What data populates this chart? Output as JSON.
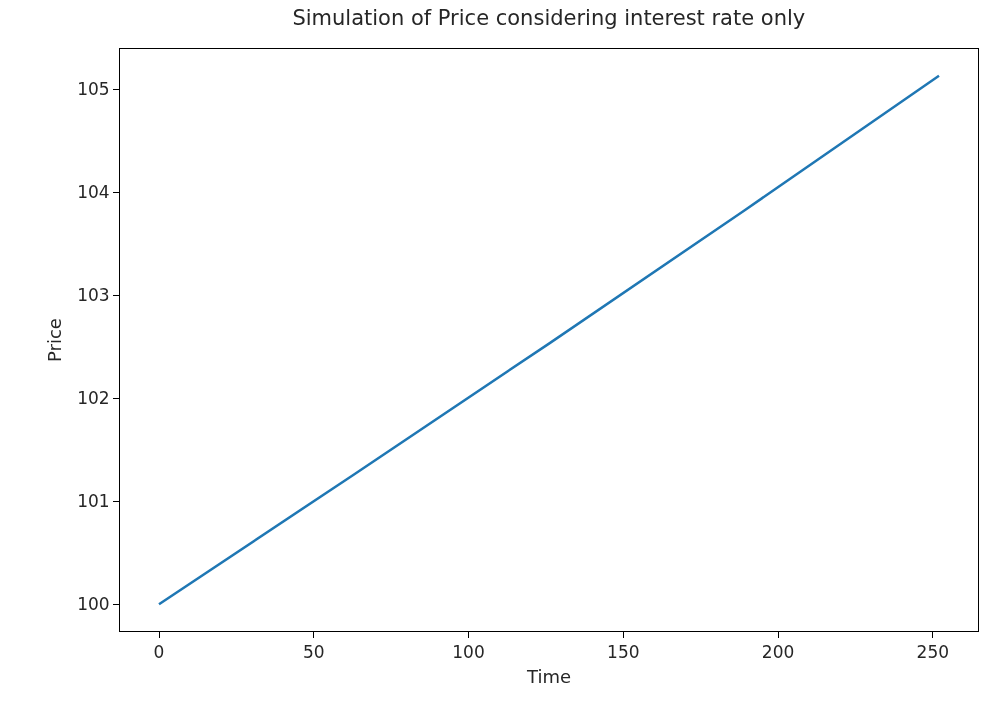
{
  "chart_data": {
    "type": "line",
    "title": "Simulation of Price considering interest rate only",
    "xlabel": "Time",
    "ylabel": "Price",
    "x": [
      0,
      63,
      126,
      189,
      252
    ],
    "series": [
      {
        "color": "#1f77b4",
        "values": [
          100,
          101.26,
          102.53,
          103.82,
          105.13
        ]
      }
    ],
    "xlim": [
      -12.6,
      264.6
    ],
    "ylim": [
      99.74,
      105.39
    ],
    "xticks": [
      0,
      50,
      100,
      150,
      200,
      250
    ],
    "yticks": [
      100,
      101,
      102,
      103,
      104,
      105
    ]
  }
}
